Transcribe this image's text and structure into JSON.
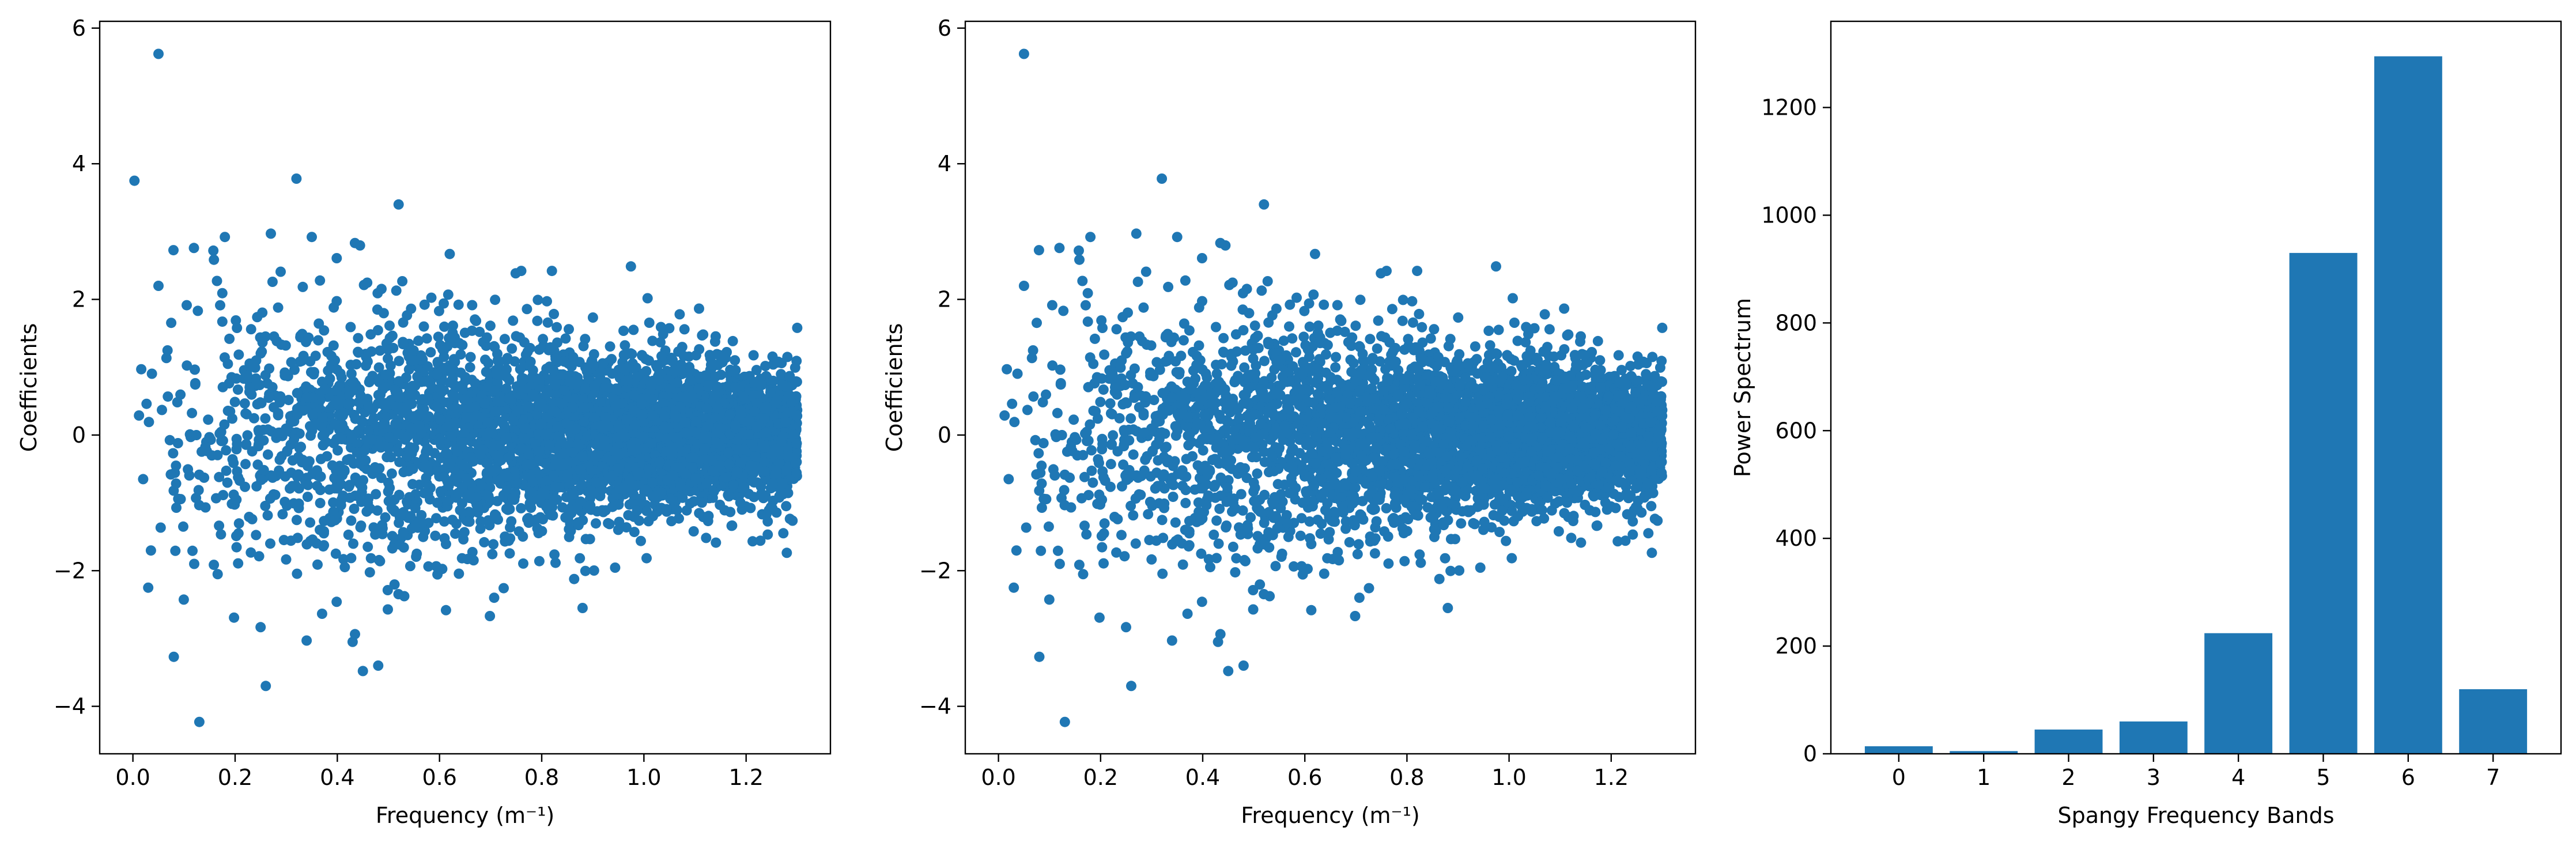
{
  "colors": {
    "series": "#1f77b4",
    "axes": "#000000",
    "background": "#ffffff"
  },
  "chart_data": [
    {
      "type": "scatter",
      "xlabel": "Frequency (m⁻¹)",
      "ylabel": "Coefficients",
      "xlim": [
        -0.065,
        1.365
      ],
      "ylim": [
        -4.7,
        6.1
      ],
      "xticks": [
        0.0,
        0.2,
        0.4,
        0.6,
        0.8,
        1.0,
        1.2
      ],
      "xtick_labels": [
        "0.0",
        "0.2",
        "0.4",
        "0.6",
        "0.8",
        "1.0",
        "1.2"
      ],
      "yticks": [
        -4,
        -2,
        0,
        2,
        4,
        6
      ],
      "ytick_labels": [
        "−4",
        "−2",
        "0",
        "2",
        "4",
        "6"
      ],
      "grid": false,
      "outliers": [
        [
          0.003,
          3.75
        ],
        [
          0.05,
          5.62
        ],
        [
          0.32,
          3.78
        ],
        [
          0.52,
          3.4
        ],
        [
          0.13,
          -4.23
        ],
        [
          0.26,
          -3.7
        ],
        [
          0.08,
          -3.27
        ],
        [
          0.05,
          2.2
        ],
        [
          0.45,
          -3.48
        ],
        [
          0.48,
          -3.4
        ],
        [
          0.02,
          -0.65
        ],
        [
          0.03,
          -2.25
        ],
        [
          0.27,
          2.97
        ],
        [
          0.35,
          2.92
        ],
        [
          0.18,
          2.92
        ],
        [
          1.3,
          1.58
        ],
        [
          1.07,
          1.78
        ],
        [
          0.62,
          2.67
        ],
        [
          0.76,
          2.42
        ],
        [
          0.82,
          2.42
        ],
        [
          0.88,
          -2.55
        ],
        [
          0.43,
          -3.05
        ],
        [
          0.34,
          -3.03
        ],
        [
          0.12,
          -1.9
        ]
      ],
      "cloud": {
        "n_points": 4000,
        "x_range": [
          0.0,
          1.3
        ],
        "spread_at_low_freq": 1.2,
        "spread_at_high_freq": 0.45
      }
    },
    {
      "type": "scatter",
      "xlabel": "Frequency (m⁻¹)",
      "ylabel": "Coefficients",
      "xlim": [
        -0.065,
        1.365
      ],
      "ylim": [
        -4.7,
        6.1
      ],
      "xticks": [
        0.0,
        0.2,
        0.4,
        0.6,
        0.8,
        1.0,
        1.2
      ],
      "xtick_labels": [
        "0.0",
        "0.2",
        "0.4",
        "0.6",
        "0.8",
        "1.0",
        "1.2"
      ],
      "yticks": [
        -4,
        -2,
        0,
        2,
        4,
        6
      ],
      "ytick_labels": [
        "−4",
        "−2",
        "0",
        "2",
        "4",
        "6"
      ],
      "grid": false,
      "outliers": [
        [
          0.05,
          5.62
        ],
        [
          0.32,
          3.78
        ],
        [
          0.52,
          3.4
        ],
        [
          0.13,
          -4.23
        ],
        [
          0.26,
          -3.7
        ],
        [
          0.08,
          -3.27
        ],
        [
          0.05,
          2.2
        ],
        [
          0.45,
          -3.48
        ],
        [
          0.48,
          -3.4
        ],
        [
          0.02,
          -0.65
        ],
        [
          0.03,
          -2.25
        ],
        [
          0.27,
          2.97
        ],
        [
          0.35,
          2.92
        ],
        [
          0.18,
          2.92
        ],
        [
          1.3,
          1.58
        ],
        [
          1.07,
          1.78
        ],
        [
          0.62,
          2.67
        ],
        [
          0.76,
          2.42
        ],
        [
          0.82,
          2.42
        ],
        [
          0.88,
          -2.55
        ],
        [
          0.43,
          -3.05
        ],
        [
          0.34,
          -3.03
        ],
        [
          0.12,
          -1.9
        ]
      ],
      "cloud": {
        "n_points": 4000,
        "x_range": [
          0.0,
          1.3
        ],
        "spread_at_low_freq": 1.2,
        "spread_at_high_freq": 0.45
      }
    },
    {
      "type": "bar",
      "xlabel": "Spangy Frequency Bands",
      "ylabel": "Power Spectrum",
      "categories": [
        "0",
        "1",
        "2",
        "3",
        "4",
        "5",
        "6",
        "7"
      ],
      "values": [
        14,
        5,
        45,
        60,
        224,
        930,
        1295,
        120
      ],
      "ylim": [
        0,
        1360
      ],
      "yticks": [
        0,
        200,
        400,
        600,
        800,
        1000,
        1200
      ],
      "ytick_labels": [
        "0",
        "200",
        "400",
        "600",
        "800",
        "1000",
        "1200"
      ],
      "grid": false
    }
  ]
}
